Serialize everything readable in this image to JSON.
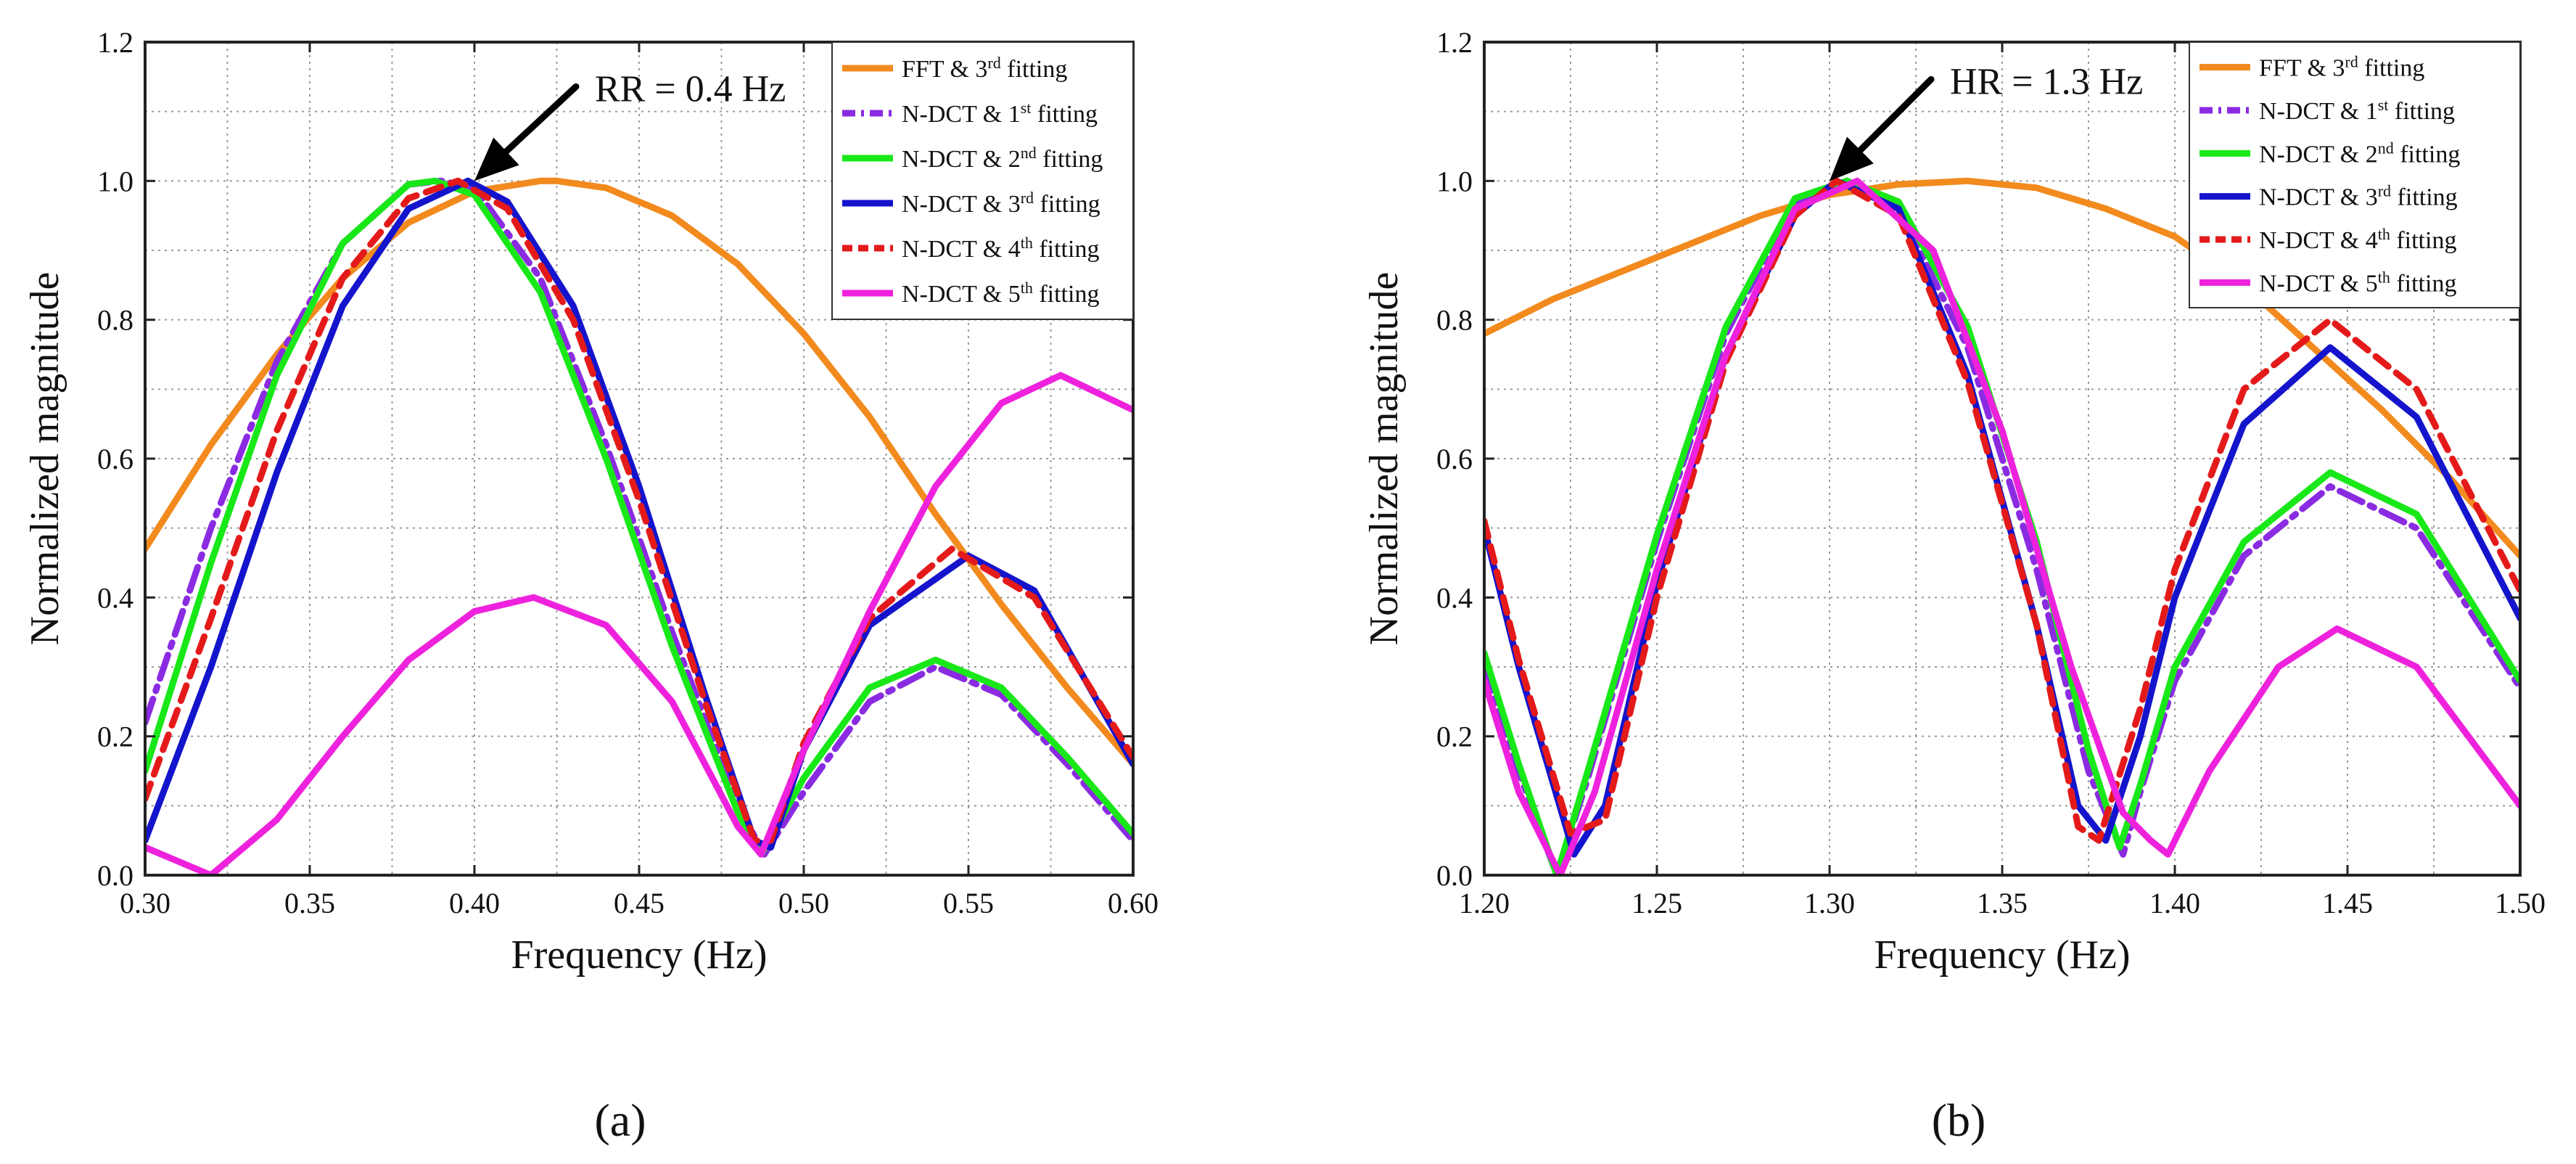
{
  "figure": {
    "panel_labels": [
      "(a)",
      "(b)"
    ]
  },
  "styles": {
    "FFT & 3rd fitting": {
      "color": "#f28a1e",
      "dash": "",
      "width": 9
    },
    "N-DCT & 1st fitting": {
      "color": "#8a2be2",
      "dash": "34 12 6 12",
      "width": 9
    },
    "N-DCT & 2nd fitting": {
      "color": "#18e818",
      "dash": "",
      "width": 9
    },
    "N-DCT & 3rd fitting": {
      "color": "#1414cc",
      "dash": "",
      "width": 9
    },
    "N-DCT & 4th fitting": {
      "color": "#e41a1a",
      "dash": "22 14",
      "width": 9
    },
    "N-DCT & 5th fitting": {
      "color": "#ee22dd",
      "dash": "",
      "width": 9
    }
  },
  "chart_data": [
    {
      "type": "line",
      "panel": "(a)",
      "title": "",
      "xlabel": "Frequency (Hz)",
      "ylabel": "Normalized magnitude",
      "xlim": [
        0.3,
        0.6
      ],
      "ylim": [
        0.0,
        1.2
      ],
      "xticks": [
        "0.30",
        "0.35",
        "0.40",
        "0.45",
        "0.50",
        "0.55",
        "0.60"
      ],
      "yticks": [
        "0.0",
        "0.2",
        "0.4",
        "0.6",
        "0.8",
        "1.0",
        "1.2"
      ],
      "grid": true,
      "legend_position": "top-right",
      "annotation": {
        "text": "RR = 0.4 Hz",
        "x": 0.4,
        "y": 1.0
      },
      "series": [
        {
          "name": "FFT & 3rd fitting",
          "x": [
            0.3,
            0.32,
            0.34,
            0.36,
            0.38,
            0.4,
            0.42,
            0.425,
            0.44,
            0.46,
            0.48,
            0.5,
            0.52,
            0.54,
            0.56,
            0.58,
            0.6
          ],
          "y": [
            0.47,
            0.62,
            0.75,
            0.86,
            0.94,
            0.985,
            1.0,
            1.0,
            0.99,
            0.95,
            0.88,
            0.78,
            0.66,
            0.52,
            0.39,
            0.27,
            0.16
          ]
        },
        {
          "name": "N-DCT & 1st fitting",
          "x": [
            0.3,
            0.32,
            0.34,
            0.36,
            0.38,
            0.39,
            0.4,
            0.42,
            0.44,
            0.46,
            0.48,
            0.488,
            0.5,
            0.52,
            0.54,
            0.56,
            0.58,
            0.6
          ],
          "y": [
            0.22,
            0.5,
            0.74,
            0.91,
            0.995,
            1.0,
            0.99,
            0.86,
            0.62,
            0.35,
            0.1,
            0.03,
            0.12,
            0.25,
            0.3,
            0.26,
            0.16,
            0.05
          ]
        },
        {
          "name": "N-DCT & 2nd fitting",
          "x": [
            0.3,
            0.32,
            0.34,
            0.36,
            0.38,
            0.388,
            0.4,
            0.42,
            0.44,
            0.46,
            0.48,
            0.487,
            0.5,
            0.52,
            0.54,
            0.56,
            0.58,
            0.6
          ],
          "y": [
            0.15,
            0.45,
            0.72,
            0.91,
            0.995,
            1.0,
            0.98,
            0.84,
            0.6,
            0.33,
            0.09,
            0.03,
            0.14,
            0.27,
            0.31,
            0.27,
            0.17,
            0.06
          ]
        },
        {
          "name": "N-DCT & 3rd fitting",
          "x": [
            0.3,
            0.32,
            0.34,
            0.36,
            0.38,
            0.398,
            0.41,
            0.43,
            0.45,
            0.47,
            0.485,
            0.49,
            0.5,
            0.52,
            0.55,
            0.57,
            0.6
          ],
          "y": [
            0.05,
            0.3,
            0.58,
            0.82,
            0.96,
            1.0,
            0.97,
            0.82,
            0.56,
            0.26,
            0.05,
            0.04,
            0.18,
            0.36,
            0.46,
            0.41,
            0.16
          ]
        },
        {
          "name": "N-DCT & 4th fitting",
          "x": [
            0.3,
            0.32,
            0.34,
            0.36,
            0.38,
            0.395,
            0.41,
            0.43,
            0.45,
            0.47,
            0.485,
            0.49,
            0.5,
            0.52,
            0.545,
            0.57,
            0.6
          ],
          "y": [
            0.11,
            0.37,
            0.64,
            0.86,
            0.975,
            1.0,
            0.96,
            0.8,
            0.54,
            0.25,
            0.05,
            0.05,
            0.19,
            0.37,
            0.47,
            0.4,
            0.17
          ]
        },
        {
          "name": "N-DCT & 5th fitting",
          "x": [
            0.3,
            0.31,
            0.32,
            0.34,
            0.36,
            0.38,
            0.4,
            0.418,
            0.44,
            0.46,
            0.48,
            0.487,
            0.5,
            0.52,
            0.54,
            0.56,
            0.578,
            0.6
          ],
          "y": [
            0.04,
            0.02,
            0.0,
            0.08,
            0.2,
            0.31,
            0.38,
            0.4,
            0.36,
            0.25,
            0.07,
            0.03,
            0.18,
            0.38,
            0.56,
            0.68,
            0.72,
            0.67
          ]
        }
      ]
    },
    {
      "type": "line",
      "panel": "(b)",
      "title": "",
      "xlabel": "Frequency (Hz)",
      "ylabel": "Normalized magnitude",
      "xlim": [
        1.2,
        1.5
      ],
      "ylim": [
        0.0,
        1.2
      ],
      "xticks": [
        "1.20",
        "1.25",
        "1.30",
        "1.35",
        "1.40",
        "1.45",
        "1.50"
      ],
      "yticks": [
        "0.0",
        "0.2",
        "0.4",
        "0.6",
        "0.8",
        "1.0",
        "1.2"
      ],
      "grid": true,
      "legend_position": "top-right",
      "annotation": {
        "text": "HR = 1.3 Hz",
        "x": 1.3,
        "y": 1.0
      },
      "series": [
        {
          "name": "FFT & 3rd fitting",
          "x": [
            1.2,
            1.22,
            1.24,
            1.26,
            1.28,
            1.3,
            1.32,
            1.34,
            1.36,
            1.38,
            1.4,
            1.42,
            1.44,
            1.46,
            1.48,
            1.5
          ],
          "y": [
            0.78,
            0.83,
            0.87,
            0.91,
            0.95,
            0.98,
            0.995,
            1.0,
            0.99,
            0.96,
            0.92,
            0.85,
            0.76,
            0.67,
            0.57,
            0.46
          ]
        },
        {
          "name": "N-DCT & 1st fitting",
          "x": [
            1.2,
            1.21,
            1.221,
            1.23,
            1.25,
            1.27,
            1.29,
            1.305,
            1.32,
            1.34,
            1.36,
            1.375,
            1.385,
            1.39,
            1.4,
            1.42,
            1.445,
            1.47,
            1.5
          ],
          "y": [
            0.3,
            0.15,
            0.0,
            0.14,
            0.48,
            0.78,
            0.97,
            1.0,
            0.96,
            0.76,
            0.44,
            0.15,
            0.03,
            0.12,
            0.28,
            0.46,
            0.56,
            0.5,
            0.27
          ]
        },
        {
          "name": "N-DCT & 2nd fitting",
          "x": [
            1.2,
            1.21,
            1.221,
            1.23,
            1.25,
            1.27,
            1.29,
            1.305,
            1.32,
            1.34,
            1.36,
            1.375,
            1.384,
            1.39,
            1.4,
            1.42,
            1.445,
            1.47,
            1.5
          ],
          "y": [
            0.32,
            0.16,
            0.0,
            0.15,
            0.49,
            0.79,
            0.975,
            1.0,
            0.97,
            0.79,
            0.48,
            0.18,
            0.04,
            0.13,
            0.3,
            0.48,
            0.58,
            0.52,
            0.28
          ]
        },
        {
          "name": "N-DCT & 3rd fitting",
          "x": [
            1.2,
            1.21,
            1.226,
            1.235,
            1.25,
            1.27,
            1.29,
            1.302,
            1.32,
            1.34,
            1.36,
            1.372,
            1.38,
            1.39,
            1.4,
            1.42,
            1.445,
            1.47,
            1.5
          ],
          "y": [
            0.5,
            0.3,
            0.03,
            0.1,
            0.42,
            0.75,
            0.95,
            1.0,
            0.96,
            0.72,
            0.36,
            0.1,
            0.05,
            0.2,
            0.4,
            0.65,
            0.76,
            0.66,
            0.37
          ]
        },
        {
          "name": "N-DCT & 4th fitting",
          "x": [
            1.2,
            1.21,
            1.225,
            1.235,
            1.25,
            1.27,
            1.29,
            1.302,
            1.32,
            1.34,
            1.36,
            1.372,
            1.378,
            1.39,
            1.4,
            1.42,
            1.445,
            1.47,
            1.5
          ],
          "y": [
            0.51,
            0.31,
            0.06,
            0.08,
            0.4,
            0.74,
            0.95,
            1.0,
            0.95,
            0.71,
            0.36,
            0.07,
            0.05,
            0.24,
            0.44,
            0.7,
            0.8,
            0.7,
            0.41
          ]
        },
        {
          "name": "N-DCT & 5th fitting",
          "x": [
            1.2,
            1.21,
            1.222,
            1.232,
            1.25,
            1.27,
            1.29,
            1.308,
            1.33,
            1.35,
            1.37,
            1.385,
            1.393,
            1.398,
            1.41,
            1.43,
            1.447,
            1.47,
            1.5
          ],
          "y": [
            0.28,
            0.12,
            0.0,
            0.12,
            0.44,
            0.75,
            0.96,
            1.0,
            0.9,
            0.64,
            0.3,
            0.09,
            0.05,
            0.03,
            0.15,
            0.3,
            0.355,
            0.3,
            0.1
          ]
        }
      ]
    }
  ]
}
